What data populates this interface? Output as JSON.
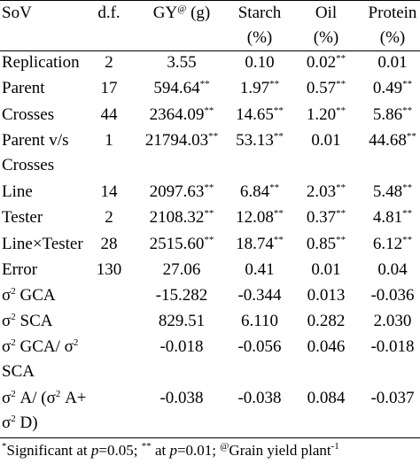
{
  "header": {
    "sov": "SoV",
    "df": "d.f.",
    "gy": "GY",
    "gy_sup": "@",
    "gy_unit": "(g)",
    "starch": "Starch",
    "starch_unit": "(%)",
    "oil": "Oil",
    "oil_unit": "(%)",
    "protein": "Protein",
    "protein_unit": "(%)"
  },
  "rows": [
    {
      "sov": "Replication",
      "sov2": "",
      "df": "2",
      "gy": "3.55",
      "gy_sig": "",
      "starch": "0.10",
      "starch_sig": "",
      "oil": "0.02",
      "oil_sig": "**",
      "protein": "0.01",
      "protein_sig": ""
    },
    {
      "sov": "Parent",
      "sov2": "",
      "df": "17",
      "gy": "594.64",
      "gy_sig": "**",
      "starch": "1.97",
      "starch_sig": "**",
      "oil": "0.57",
      "oil_sig": "**",
      "protein": "0.49",
      "protein_sig": "**"
    },
    {
      "sov": "Crosses",
      "sov2": "",
      "df": "44",
      "gy": "2364.09",
      "gy_sig": "**",
      "starch": "14.65",
      "starch_sig": "**",
      "oil": "1.20",
      "oil_sig": "**",
      "protein": "5.86",
      "protein_sig": "**"
    },
    {
      "sov": "Parent v/s",
      "sov2": "Crosses",
      "df": "1",
      "gy": "21794.03",
      "gy_sig": "**",
      "starch": "53.13",
      "starch_sig": "**",
      "oil": "0.01",
      "oil_sig": "",
      "protein": "44.68",
      "protein_sig": "**"
    },
    {
      "sov": "Line",
      "sov2": "",
      "df": "14",
      "gy": "2097.63",
      "gy_sig": "**",
      "starch": "6.84",
      "starch_sig": "**",
      "oil": "2.03",
      "oil_sig": "**",
      "protein": "5.48",
      "protein_sig": "**"
    },
    {
      "sov": "Tester",
      "sov2": "",
      "df": "2",
      "gy": "2108.32",
      "gy_sig": "**",
      "starch": "12.08",
      "starch_sig": "**",
      "oil": "0.37",
      "oil_sig": "**",
      "protein": "4.81",
      "protein_sig": "**"
    },
    {
      "sov": "Line×Tester",
      "sov2": "",
      "df": "28",
      "gy": "2515.60",
      "gy_sig": "**",
      "starch": "18.74",
      "starch_sig": "**",
      "oil": "0.85",
      "oil_sig": "**",
      "protein": "6.12",
      "protein_sig": "**"
    },
    {
      "sov": "Error",
      "sov2": "",
      "df": "130",
      "gy": "27.06",
      "gy_sig": "",
      "starch": "0.41",
      "starch_sig": "",
      "oil": "0.01",
      "oil_sig": "",
      "protein": "0.04",
      "protein_sig": ""
    }
  ],
  "variance_rows": [
    {
      "a": "σ",
      "a_sup": "2",
      "a_rest": " GCA",
      "b": "",
      "b_sup": "",
      "b_rest": "",
      "line2": "",
      "line2_sup": "",
      "line2_rest": "",
      "df": "",
      "gy": "-15.282",
      "starch": "-0.344",
      "oil": "0.013",
      "protein": "-0.036"
    },
    {
      "a": "σ",
      "a_sup": "2",
      "a_rest": " SCA",
      "b": "",
      "b_sup": "",
      "b_rest": "",
      "line2": "",
      "line2_sup": "",
      "line2_rest": "",
      "df": "",
      "gy": "829.51",
      "starch": "6.110",
      "oil": "0.282",
      "protein": "2.030"
    },
    {
      "a": "σ",
      "a_sup": "2",
      "a_rest": " GCA/ σ",
      "b": "",
      "b_sup": "2",
      "b_rest": "",
      "line2": "SCA",
      "line2_sup": "",
      "line2_rest": "",
      "df": "",
      "gy": "-0.018",
      "starch": "-0.056",
      "oil": "0.046",
      "protein": "-0.018"
    },
    {
      "a": "σ",
      "a_sup": "2",
      "a_rest": " A/ (σ",
      "b": "",
      "b_sup": "2",
      "b_rest": " A+",
      "line2": "σ",
      "line2_sup": "2",
      "line2_rest": " D)",
      "df": "",
      "gy": "-0.038",
      "starch": "-0.038",
      "oil": "0.084",
      "protein": "-0.037"
    }
  ],
  "footnote": {
    "mark1": "*",
    "text1": "Significant at ",
    "p1": "p",
    "text2": "=0.05; ",
    "mark2": "**",
    "text3": " at ",
    "p2": "p",
    "text4": "=0.01; ",
    "mark3": "@",
    "text5": "Grain yield plant",
    "sup_end": "-1"
  }
}
